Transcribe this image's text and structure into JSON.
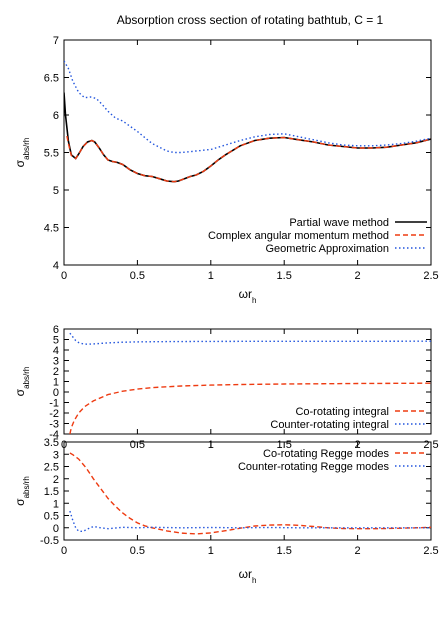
{
  "figure_title": "Absorption cross section of rotating bathtub, C = 1",
  "chart_data": [
    {
      "type": "line",
      "title": "Absorption cross section of rotating bathtub, C = 1",
      "xlabel": "ωr_h",
      "ylabel": "σ_abs/r_h",
      "xlim": [
        0,
        2.5
      ],
      "ylim": [
        4,
        7
      ],
      "xticks": [
        "0",
        "0.5",
        "1",
        "1.5",
        "2",
        "2.5"
      ],
      "yticks": [
        "4",
        "4.5",
        "5",
        "5.5",
        "6",
        "6.5",
        "7"
      ],
      "legend_position": "bottom-right",
      "series": [
        {
          "name": "Partial wave method",
          "color": "#000000",
          "style": "solid",
          "x": [
            0,
            0.01,
            0.03,
            0.05,
            0.08,
            0.1,
            0.13,
            0.16,
            0.19,
            0.21,
            0.24,
            0.27,
            0.3,
            0.33,
            0.36,
            0.4,
            0.45,
            0.5,
            0.55,
            0.6,
            0.65,
            0.7,
            0.75,
            0.78,
            0.82,
            0.86,
            0.9,
            0.95,
            1.0,
            1.05,
            1.1,
            1.2,
            1.3,
            1.4,
            1.5,
            1.6,
            1.7,
            1.8,
            1.9,
            2.0,
            2.1,
            2.2,
            2.3,
            2.4,
            2.5
          ],
          "y": [
            6.3,
            6.0,
            5.65,
            5.47,
            5.42,
            5.48,
            5.58,
            5.64,
            5.66,
            5.64,
            5.56,
            5.47,
            5.4,
            5.38,
            5.37,
            5.34,
            5.27,
            5.22,
            5.19,
            5.18,
            5.15,
            5.12,
            5.11,
            5.12,
            5.15,
            5.18,
            5.2,
            5.25,
            5.32,
            5.4,
            5.47,
            5.59,
            5.66,
            5.69,
            5.7,
            5.67,
            5.64,
            5.6,
            5.58,
            5.56,
            5.56,
            5.57,
            5.6,
            5.63,
            5.68
          ]
        },
        {
          "name": "Complex angular momentum method",
          "color": "#ee3b11",
          "style": "dashed",
          "x": [
            0.02,
            0.03,
            0.05,
            0.08,
            0.1,
            0.13,
            0.16,
            0.19,
            0.21,
            0.24,
            0.27,
            0.3,
            0.33,
            0.36,
            0.4,
            0.45,
            0.5,
            0.55,
            0.6,
            0.65,
            0.7,
            0.75,
            0.78,
            0.82,
            0.86,
            0.9,
            0.95,
            1.0,
            1.05,
            1.1,
            1.2,
            1.3,
            1.4,
            1.5,
            1.6,
            1.7,
            1.8,
            1.9,
            2.0,
            2.1,
            2.2,
            2.3,
            2.4,
            2.5
          ],
          "y": [
            5.72,
            5.62,
            5.46,
            5.42,
            5.48,
            5.58,
            5.64,
            5.66,
            5.64,
            5.56,
            5.47,
            5.4,
            5.38,
            5.37,
            5.34,
            5.27,
            5.22,
            5.19,
            5.18,
            5.15,
            5.12,
            5.11,
            5.12,
            5.15,
            5.18,
            5.2,
            5.25,
            5.32,
            5.4,
            5.47,
            5.59,
            5.66,
            5.69,
            5.7,
            5.67,
            5.64,
            5.6,
            5.58,
            5.56,
            5.56,
            5.57,
            5.6,
            5.63,
            5.68
          ]
        },
        {
          "name": "Geometric Approximation",
          "color": "#2255dd",
          "style": "dotted",
          "x": [
            0,
            0.03,
            0.06,
            0.1,
            0.14,
            0.18,
            0.22,
            0.26,
            0.3,
            0.35,
            0.4,
            0.45,
            0.5,
            0.55,
            0.6,
            0.65,
            0.7,
            0.75,
            0.8,
            0.85,
            0.9,
            0.95,
            1.0,
            1.1,
            1.2,
            1.3,
            1.4,
            1.5,
            1.6,
            1.7,
            1.8,
            1.9,
            2.0,
            2.1,
            2.2,
            2.3,
            2.4,
            2.5
          ],
          "y": [
            6.72,
            6.62,
            6.45,
            6.3,
            6.23,
            6.24,
            6.22,
            6.14,
            6.05,
            5.96,
            5.92,
            5.85,
            5.78,
            5.7,
            5.62,
            5.57,
            5.52,
            5.5,
            5.5,
            5.51,
            5.52,
            5.53,
            5.54,
            5.6,
            5.66,
            5.71,
            5.74,
            5.75,
            5.71,
            5.67,
            5.63,
            5.6,
            5.59,
            5.59,
            5.6,
            5.62,
            5.65,
            5.69
          ]
        }
      ]
    },
    {
      "type": "line",
      "ylabel": "σ_abs/r_h",
      "xlim": [
        0,
        2.5
      ],
      "ylim": [
        -4,
        6
      ],
      "xticks": [
        "0",
        "0.5",
        "1",
        "1.5",
        "2",
        "2.5"
      ],
      "yticks": [
        "-4",
        "-3",
        "-2",
        "-1",
        "0",
        "1",
        "2",
        "3",
        "4",
        "5",
        "6"
      ],
      "legend_position": "bottom-right",
      "series": [
        {
          "name": "Co-rotating integral",
          "color": "#ee3b11",
          "style": "dashed",
          "x": [
            0.04,
            0.05,
            0.07,
            0.1,
            0.14,
            0.2,
            0.3,
            0.4,
            0.5,
            0.6,
            0.8,
            1.0,
            1.2,
            1.5,
            2.0,
            2.5
          ],
          "y": [
            -4.0,
            -3.4,
            -2.7,
            -2.0,
            -1.4,
            -0.85,
            -0.25,
            0.08,
            0.28,
            0.42,
            0.57,
            0.66,
            0.71,
            0.76,
            0.81,
            0.84
          ]
        },
        {
          "name": "Counter-rotating integral",
          "color": "#2255dd",
          "style": "dotted",
          "x": [
            0.04,
            0.06,
            0.08,
            0.1,
            0.13,
            0.16,
            0.2,
            0.3,
            0.4,
            0.5,
            0.7,
            1.0,
            1.5,
            2.0,
            2.5
          ],
          "y": [
            5.6,
            5.25,
            4.9,
            4.7,
            4.58,
            4.55,
            4.58,
            4.68,
            4.74,
            4.77,
            4.8,
            4.82,
            4.83,
            4.83,
            4.84
          ]
        }
      ]
    },
    {
      "type": "line",
      "xlabel": "ωr_h",
      "ylabel": "σ_abs/r_h",
      "xlim": [
        0,
        2.5
      ],
      "ylim": [
        -0.5,
        3.5
      ],
      "xticks": [
        "0",
        "0.5",
        "1",
        "1.5",
        "2",
        "2.5"
      ],
      "yticks": [
        "-0.5",
        "0",
        "0.5",
        "1",
        "1.5",
        "2",
        "2.5",
        "3",
        "3.5"
      ],
      "legend_position": "top-right",
      "series": [
        {
          "name": "Co-rotating Regge modes",
          "color": "#ee3b11",
          "style": "dashed",
          "x": [
            0.04,
            0.06,
            0.1,
            0.15,
            0.2,
            0.25,
            0.3,
            0.35,
            0.4,
            0.45,
            0.5,
            0.55,
            0.6,
            0.7,
            0.8,
            0.9,
            1.0,
            1.1,
            1.2,
            1.3,
            1.4,
            1.5,
            1.6,
            1.7,
            1.8,
            1.9,
            2.0,
            2.1,
            2.2,
            2.3,
            2.4,
            2.5
          ],
          "y": [
            3.05,
            2.98,
            2.8,
            2.45,
            2.0,
            1.6,
            1.2,
            0.88,
            0.6,
            0.38,
            0.2,
            0.08,
            0.0,
            -0.13,
            -0.22,
            -0.25,
            -0.21,
            -0.12,
            -0.02,
            0.07,
            0.11,
            0.12,
            0.1,
            0.05,
            0.0,
            -0.03,
            -0.04,
            -0.04,
            -0.03,
            -0.02,
            0.0,
            0.02
          ]
        },
        {
          "name": "Counter-rotating Regge modes",
          "color": "#2255dd",
          "style": "dotted",
          "x": [
            0.04,
            0.06,
            0.08,
            0.1,
            0.13,
            0.16,
            0.2,
            0.25,
            0.3,
            0.4,
            0.5,
            0.6,
            0.8,
            1.0,
            1.2,
            1.4,
            1.6,
            1.8,
            2.0,
            2.2,
            2.5
          ],
          "y": [
            0.68,
            0.3,
            0.0,
            -0.14,
            -0.15,
            -0.05,
            0.05,
            0.0,
            -0.04,
            0.02,
            0.0,
            0.02,
            0.0,
            0.01,
            0.0,
            0.01,
            0.0,
            0.0,
            0.0,
            0.0,
            0.0
          ]
        }
      ]
    }
  ]
}
